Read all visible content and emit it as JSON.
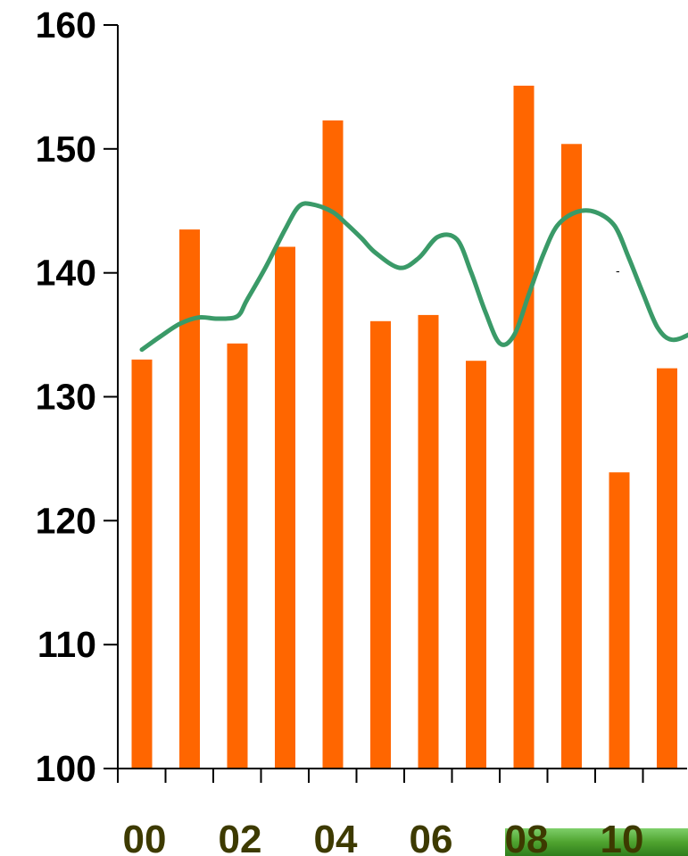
{
  "chart_data": {
    "type": "bar",
    "title": "",
    "xlabel": "",
    "ylabel": "",
    "ylim": [
      100,
      160
    ],
    "yticks": [
      "100",
      "110",
      "120",
      "130",
      "140",
      "150",
      "160"
    ],
    "xtick_labels": [
      "00",
      "02",
      "04",
      "06",
      "08",
      "10"
    ],
    "x": [
      2000,
      2000.5,
      2001,
      2001.5,
      2002,
      2002.5,
      2003,
      2003.5,
      2004,
      2004.5,
      2005,
      2005.5
    ],
    "series": [
      {
        "type": "bar",
        "values": [
          133.0,
          143.5,
          134.3,
          142.1,
          152.3,
          136.1,
          136.6,
          132.9,
          155.1,
          150.4,
          123.9,
          132.3
        ]
      },
      {
        "type": "line",
        "points": [
          [
            2000.0,
            133.8
          ],
          [
            2000.2,
            134.9
          ],
          [
            2000.4,
            135.9
          ],
          [
            2000.6,
            136.4
          ],
          [
            2000.8,
            136.3
          ],
          [
            2001.0,
            136.5
          ],
          [
            2001.1,
            137.8
          ],
          [
            2001.3,
            140.5
          ],
          [
            2001.5,
            143.5
          ],
          [
            2001.65,
            145.4
          ],
          [
            2001.8,
            145.5
          ],
          [
            2002.0,
            144.9
          ],
          [
            2002.15,
            143.9
          ],
          [
            2002.3,
            142.8
          ],
          [
            2002.45,
            141.6
          ],
          [
            2002.7,
            140.4
          ],
          [
            2002.9,
            141.2
          ],
          [
            2003.1,
            142.9
          ],
          [
            2003.3,
            142.7
          ],
          [
            2003.45,
            140.0
          ],
          [
            2003.6,
            136.8
          ],
          [
            2003.75,
            134.3
          ],
          [
            2003.9,
            135.0
          ],
          [
            2004.05,
            138.2
          ],
          [
            2004.2,
            141.4
          ],
          [
            2004.35,
            143.8
          ],
          [
            2004.55,
            144.9
          ],
          [
            2004.75,
            144.9
          ],
          [
            2004.95,
            143.8
          ],
          [
            2005.1,
            141.2
          ],
          [
            2005.25,
            138.3
          ],
          [
            2005.4,
            135.6
          ],
          [
            2005.55,
            134.6
          ],
          [
            2005.75,
            135.1
          ],
          [
            2005.95,
            136.1
          ],
          [
            2006.1,
            136.8
          ]
        ]
      }
    ],
    "colors": {
      "bars": "#ff6600",
      "line": "#3a9a68",
      "axis": "#000000",
      "x_tick_labels": "#3d3a00",
      "ytick_labels": "#000000",
      "highlight_bar": "#52a52a"
    },
    "grid": false,
    "legend": "none",
    "stray_mark": "-"
  }
}
